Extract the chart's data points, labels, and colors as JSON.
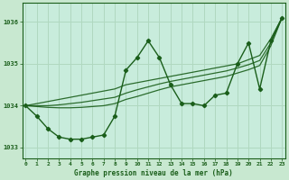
{
  "title": "Graphe pression niveau de la mer (hPa)",
  "background_color": "#c8e8d0",
  "plot_bg_color": "#c8ecdc",
  "grid_color": "#b0d8c0",
  "line_color": "#1a5e1a",
  "xlim": [
    -0.3,
    23.3
  ],
  "ylim": [
    1032.75,
    1036.45
  ],
  "yticks": [
    1033,
    1034,
    1035,
    1036
  ],
  "xticks": [
    0,
    1,
    2,
    3,
    4,
    5,
    6,
    7,
    8,
    9,
    10,
    11,
    12,
    13,
    14,
    15,
    16,
    17,
    18,
    19,
    20,
    21,
    22,
    23
  ],
  "series": {
    "main": [
      1034.0,
      1033.75,
      1033.45,
      1033.25,
      1033.2,
      1033.2,
      1033.25,
      1033.3,
      1033.75,
      1034.85,
      1035.15,
      1035.55,
      1035.15,
      1034.5,
      1034.05,
      1034.05,
      1034.0,
      1034.25,
      1034.3,
      1035.0,
      1035.5,
      1034.4,
      1035.55,
      1036.1
    ],
    "trend1": [
      1034.0,
      1034.05,
      1034.1,
      1034.15,
      1034.2,
      1034.25,
      1034.3,
      1034.35,
      1034.4,
      1034.5,
      1034.55,
      1034.6,
      1034.65,
      1034.7,
      1034.75,
      1034.8,
      1034.85,
      1034.9,
      1034.95,
      1035.0,
      1035.1,
      1035.2,
      1035.6,
      1036.1
    ],
    "trend2": [
      1034.0,
      1034.0,
      1034.0,
      1034.02,
      1034.05,
      1034.08,
      1034.12,
      1034.16,
      1034.2,
      1034.3,
      1034.38,
      1034.45,
      1034.52,
      1034.58,
      1034.63,
      1034.68,
      1034.73,
      1034.78,
      1034.83,
      1034.9,
      1034.98,
      1035.08,
      1035.5,
      1036.1
    ],
    "trend3": [
      1034.0,
      1033.98,
      1033.96,
      1033.95,
      1033.95,
      1033.96,
      1033.98,
      1034.0,
      1034.05,
      1034.15,
      1034.22,
      1034.3,
      1034.38,
      1034.45,
      1034.5,
      1034.55,
      1034.6,
      1034.65,
      1034.7,
      1034.78,
      1034.86,
      1034.96,
      1035.43,
      1036.1
    ]
  }
}
